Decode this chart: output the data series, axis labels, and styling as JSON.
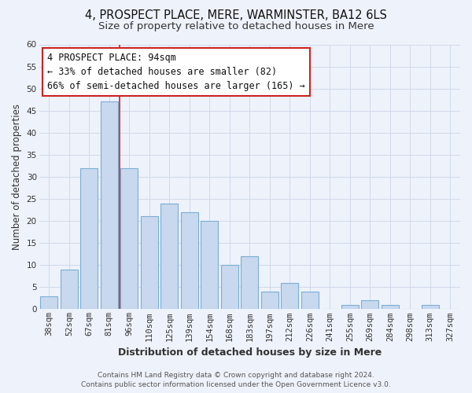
{
  "title": "4, PROSPECT PLACE, MERE, WARMINSTER, BA12 6LS",
  "subtitle": "Size of property relative to detached houses in Mere",
  "xlabel": "Distribution of detached houses by size in Mere",
  "ylabel": "Number of detached properties",
  "categories": [
    "38sqm",
    "52sqm",
    "67sqm",
    "81sqm",
    "96sqm",
    "110sqm",
    "125sqm",
    "139sqm",
    "154sqm",
    "168sqm",
    "183sqm",
    "197sqm",
    "212sqm",
    "226sqm",
    "241sqm",
    "255sqm",
    "269sqm",
    "284sqm",
    "298sqm",
    "313sqm",
    "327sqm"
  ],
  "values": [
    3,
    9,
    32,
    47,
    32,
    21,
    24,
    22,
    20,
    10,
    12,
    4,
    6,
    4,
    0,
    1,
    2,
    1,
    0,
    1,
    0
  ],
  "bar_color": "#c8d8ee",
  "bar_edge_color": "#7bafd4",
  "bar_highlight_index": 3,
  "highlight_line_color": "#cc2222",
  "annotation_line1": "4 PROSPECT PLACE: 94sqm",
  "annotation_line2": "← 33% of detached houses are smaller (82)",
  "annotation_line3": "66% of semi-detached houses are larger (165) →",
  "annotation_box_facecolor": "#ffffff",
  "annotation_box_edgecolor": "#cc2222",
  "ylim": [
    0,
    60
  ],
  "yticks": [
    0,
    5,
    10,
    15,
    20,
    25,
    30,
    35,
    40,
    45,
    50,
    55,
    60
  ],
  "footer_line1": "Contains HM Land Registry data © Crown copyright and database right 2024.",
  "footer_line2": "Contains public sector information licensed under the Open Government Licence v3.0.",
  "title_fontsize": 10.5,
  "subtitle_fontsize": 9.5,
  "xlabel_fontsize": 9,
  "ylabel_fontsize": 8.5,
  "tick_fontsize": 7.5,
  "annot_fontsize": 8.5,
  "grid_color": "#d0daea",
  "background_color": "#eef2fa",
  "plot_bg_color": "#eef2fa",
  "footer_fontsize": 6.5
}
